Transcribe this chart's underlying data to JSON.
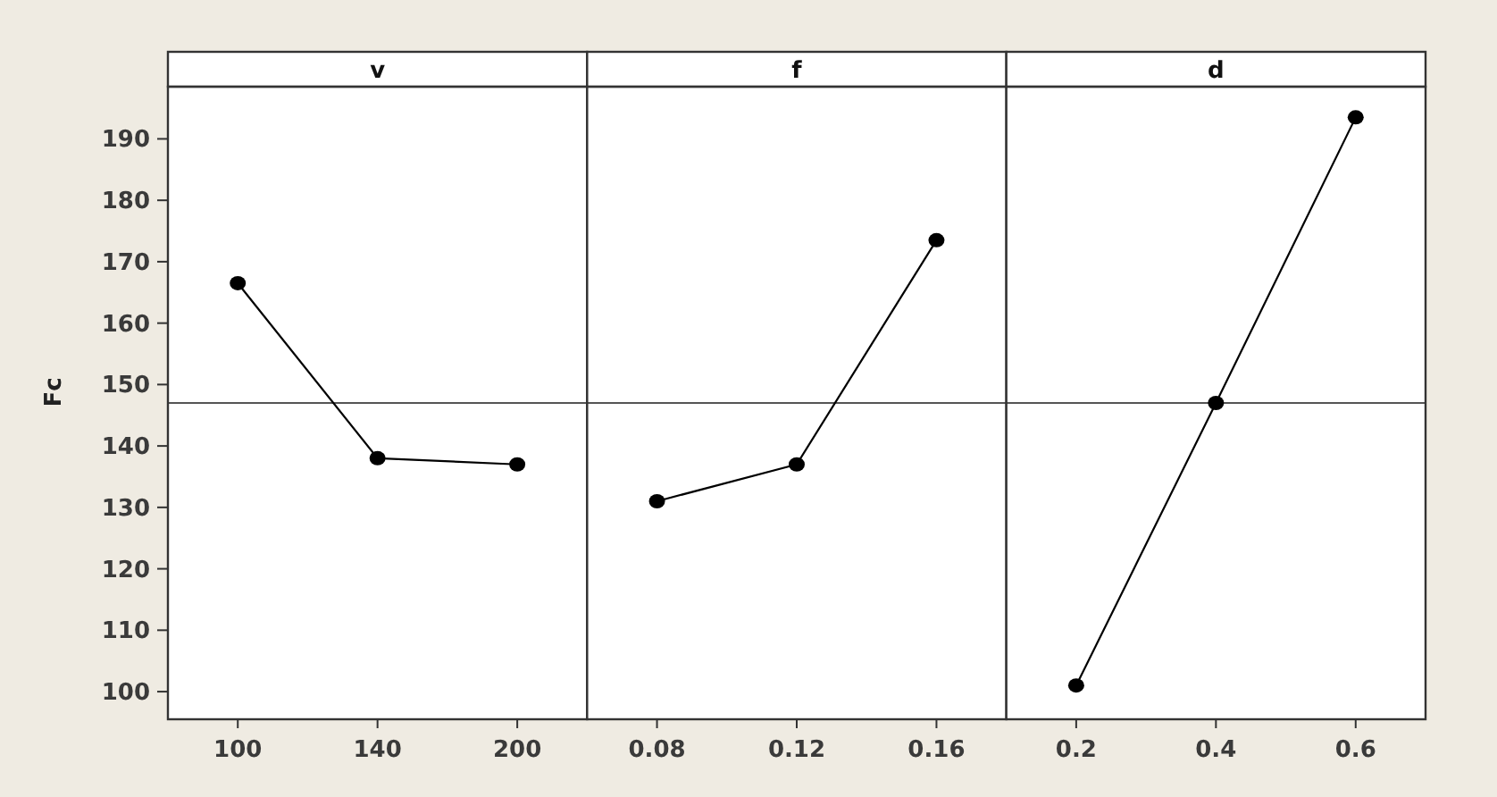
{
  "chart_data": [
    {
      "type": "line",
      "title": "v",
      "ylabel": "Fc",
      "categories": [
        "100",
        "140",
        "200"
      ],
      "values": [
        166.5,
        138,
        137
      ],
      "color": "#000000",
      "marker": "circle",
      "ylim": [
        95.5,
        198.5
      ],
      "yticks": [
        100,
        110,
        120,
        130,
        140,
        150,
        160,
        170,
        180,
        190
      ],
      "ref_lines": [
        {
          "axis": "y",
          "value": 147
        }
      ]
    },
    {
      "type": "line",
      "title": "f",
      "categories": [
        "0.08",
        "0.12",
        "0.16"
      ],
      "values": [
        131,
        137,
        173.5
      ],
      "color": "#000000",
      "marker": "circle",
      "ylim": [
        95.5,
        198.5
      ],
      "tick_labels": "x",
      "ref_lines": [
        {
          "axis": "y",
          "value": 147
        }
      ]
    },
    {
      "type": "line",
      "title": "d",
      "categories": [
        "0.2",
        "0.4",
        "0.6"
      ],
      "values": [
        101,
        147,
        193.5
      ],
      "color": "#000000",
      "marker": "circle",
      "ylim": [
        95.5,
        198.5
      ],
      "tick_labels": "x",
      "ref_lines": [
        {
          "axis": "y",
          "value": 147
        }
      ]
    }
  ]
}
